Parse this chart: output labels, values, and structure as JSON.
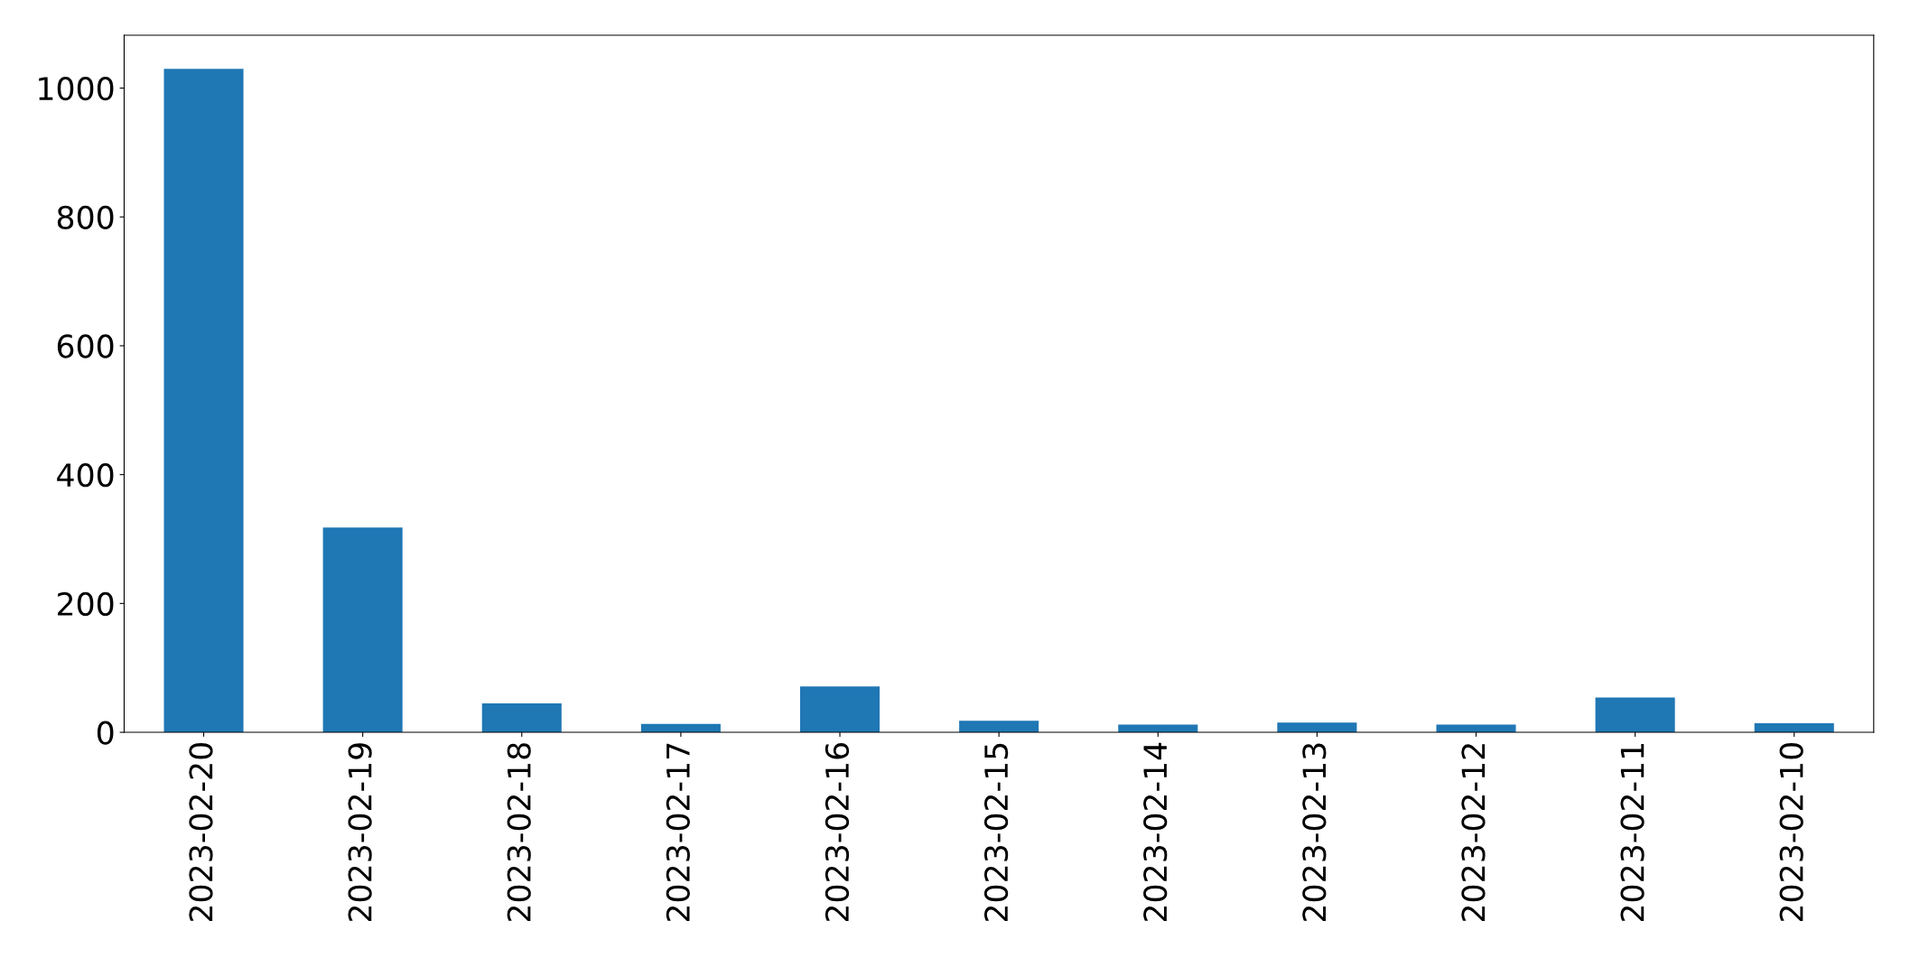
{
  "chart_data": {
    "type": "bar",
    "categories": [
      "2023-02-20",
      "2023-02-19",
      "2023-02-18",
      "2023-02-17",
      "2023-02-16",
      "2023-02-15",
      "2023-02-14",
      "2023-02-13",
      "2023-02-12",
      "2023-02-11",
      "2023-02-10"
    ],
    "values": [
      1030,
      318,
      45,
      13,
      71,
      18,
      12,
      15,
      12,
      54,
      14
    ],
    "color": "#1f77b4",
    "ylim": [
      0,
      1082
    ],
    "yticks": [
      0,
      200,
      400,
      600,
      800,
      1000
    ]
  }
}
